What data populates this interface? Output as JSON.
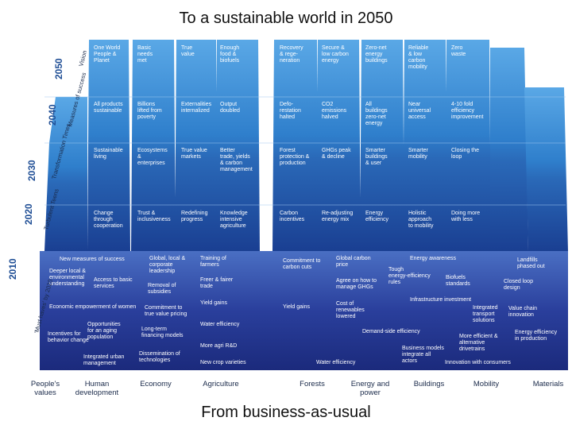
{
  "title": "To a sustainable world in 2050",
  "footer": "From business-as-usual",
  "years": [
    "2050",
    "2040",
    "2030",
    "2020",
    "2010"
  ],
  "side_labels": [
    "Vision",
    "Measures of success",
    "Transformation Times",
    "Turbulent Teens",
    "'Must haves' by 2020"
  ],
  "columns": [
    "People's values",
    "Human development",
    "Economy",
    "Agriculture",
    "Forests",
    "Energy and power",
    "Buildings",
    "Mobility",
    "Materials"
  ],
  "rows": {
    "vision": [
      [
        "One World",
        "People &",
        "Planet"
      ],
      [
        "Basic",
        "needs",
        "met"
      ],
      [
        "True",
        "value"
      ],
      [
        "Enough",
        "food &",
        "biofuels"
      ],
      [
        "Recovery",
        "& rege-",
        "neration"
      ],
      [
        "Secure &",
        "low carbon",
        "energy"
      ],
      [
        "Zero-net",
        "energy",
        "buildings"
      ],
      [
        "Reliable",
        "& low",
        "carbon",
        "mobility"
      ],
      [
        "Zero",
        "waste"
      ]
    ],
    "measures": [
      [
        "All products",
        "sustainable"
      ],
      [
        "Billions",
        "lifted from",
        "poverty"
      ],
      [
        "Externalities",
        "internalized"
      ],
      [
        "Output",
        "doubled"
      ],
      [
        "Defo-",
        "restation",
        "halted"
      ],
      [
        "CO2",
        "emissions",
        "halved"
      ],
      [
        "All",
        "buildings",
        "zero-net",
        "energy"
      ],
      [
        "Near",
        "universal",
        "access"
      ],
      [
        "4-10 fold",
        "efficiency",
        "improvement"
      ]
    ],
    "transformation": [
      [
        "Sustainable",
        "living"
      ],
      [
        "Ecosystems",
        "&",
        "enterprises"
      ],
      [
        "True value",
        "markets"
      ],
      [
        "Better",
        "trade, yields",
        "& carbon",
        "management"
      ],
      [
        "Forest",
        "protection &",
        "production"
      ],
      [
        "GHGs peak",
        "& decline"
      ],
      [
        "Smarter",
        "buildings",
        "& user"
      ],
      [
        "Smarter",
        "mobility"
      ],
      [
        "Closing the",
        "loop"
      ]
    ],
    "turbulent": [
      [
        "Change",
        "through",
        "cooperation"
      ],
      [
        "Trust &",
        "inclusiveness"
      ],
      [
        "Redefining",
        "progress"
      ],
      [
        "Knowledge",
        "intensive",
        "agriculture"
      ],
      [
        "Carbon",
        "incentives"
      ],
      [
        "Re-adjusting",
        "energy mix"
      ],
      [
        "Energy",
        "efficiency"
      ],
      [
        "Holistic",
        "approach",
        "to mobility"
      ],
      [
        "Doing more",
        "with less"
      ]
    ]
  },
  "must_haves": [
    [
      "New measures of success"
    ],
    [
      "Deeper local &",
      "environmental",
      "understanding"
    ],
    [
      "Access to basic",
      "services"
    ],
    [
      "Economic empowerment of women"
    ],
    [
      "Incentives for",
      "behavior change"
    ],
    [
      "Opportunities",
      "for an aging",
      "population"
    ],
    [
      "Integrated urban",
      "management"
    ],
    [
      "Global, local &",
      "corporate",
      "leadership"
    ],
    [
      "Removal of",
      "subsidies"
    ],
    [
      "Commitment to",
      "true value pricing"
    ],
    [
      "Long-term",
      "financing models"
    ],
    [
      "Dissemination of",
      "technologies"
    ],
    [
      "Training of",
      "farmers"
    ],
    [
      "Freer & fairer",
      "trade"
    ],
    [
      "Yield gains"
    ],
    [
      "Water efficiency"
    ],
    [
      "More agri R&D"
    ],
    [
      "New crop varieties"
    ],
    [
      "Commitment to",
      "carbon cuts"
    ],
    [
      "Yield gains"
    ],
    [
      "Global carbon",
      "price"
    ],
    [
      "Agree on how to",
      "manage GHGs"
    ],
    [
      "Cost of",
      "renewables",
      "lowered"
    ],
    [
      "Water efficiency"
    ],
    [
      "Energy awareness"
    ],
    [
      "Tough",
      "energy-efficiency",
      "rules"
    ],
    [
      "Infrastructure investment"
    ],
    [
      "Demand-side efficiency"
    ],
    [
      "Business models",
      "integrate all",
      "actors"
    ],
    [
      "Biofuels",
      "standards"
    ],
    [
      "Integrated",
      "transport",
      "solutions"
    ],
    [
      "More efficient &",
      "alternative",
      "drivetrains"
    ],
    [
      "Innovation with consumers"
    ],
    [
      "Landfills",
      "phased out"
    ],
    [
      "Closed loop",
      "design"
    ],
    [
      "Value chain",
      "innovation"
    ],
    [
      "Energy efficiency",
      "in production"
    ]
  ],
  "colors": {
    "top_blue": "#3d8fd2",
    "mid_blue": "#2a6fbd",
    "deep_blue": "#1a2f86",
    "base_blue": "#2b3d9e",
    "label_text": "#1a2a4a"
  }
}
